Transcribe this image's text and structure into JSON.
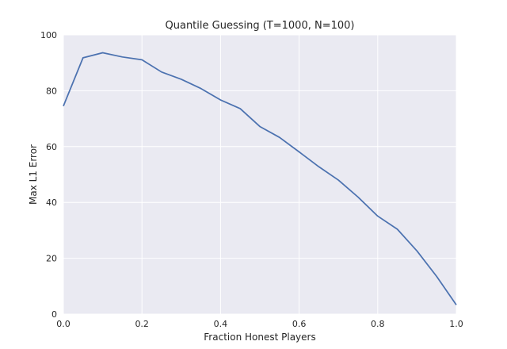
{
  "chart_data": {
    "type": "line",
    "title": "Quantile Guessing (T=1000, N=100)",
    "xlabel": "Fraction Honest Players",
    "ylabel": "Max L1 Error",
    "xlim": [
      0.0,
      1.0
    ],
    "ylim": [
      0,
      100
    ],
    "xticks": [
      "0.0",
      "0.2",
      "0.4",
      "0.6",
      "0.8",
      "1.0"
    ],
    "yticks": [
      "0",
      "20",
      "40",
      "60",
      "80",
      "100"
    ],
    "grid": true,
    "legend": "none",
    "colors": {
      "plot_background": "#eaeaf2",
      "grid": "#ffffff",
      "line": "#4c72b0"
    },
    "series": [
      {
        "x": [
          0.0,
          0.05,
          0.1,
          0.15,
          0.2,
          0.25,
          0.3,
          0.35,
          0.4,
          0.45,
          0.5,
          0.55,
          0.6,
          0.65,
          0.7,
          0.75,
          0.8,
          0.85,
          0.9,
          0.95,
          1.0
        ],
        "y": [
          74.5,
          91.8,
          93.6,
          92.1,
          91.1,
          86.7,
          84.1,
          80.8,
          76.7,
          73.6,
          67.2,
          63.3,
          58.1,
          52.8,
          48.0,
          41.9,
          35.1,
          30.4,
          22.6,
          13.5,
          3.3
        ]
      }
    ]
  }
}
